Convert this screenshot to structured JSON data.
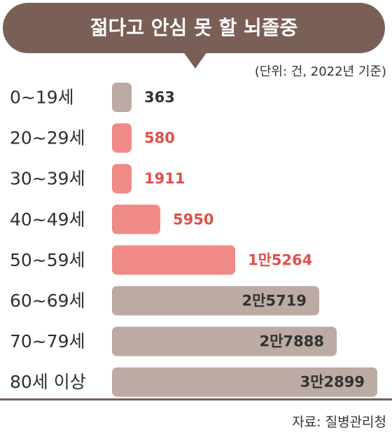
{
  "header": {
    "title": "젊다고 안심 못 할 뇌졸중",
    "unit_note": "(단위: 건, 2022년 기준)"
  },
  "source": "자료: 질병관리청",
  "colors": {
    "banner": "#7a5f57",
    "bar_gray": "#bcaaa4",
    "bar_red": "#f08a86",
    "label_red": "#e0504a",
    "label_dark": "#333333"
  },
  "chart_data": {
    "type": "bar",
    "orientation": "horizontal",
    "title": "젊다고 안심 못 할 뇌졸중",
    "unit": "건",
    "categories": [
      "0~19세",
      "20~29세",
      "30~39세",
      "40~49세",
      "50~59세",
      "60~69세",
      "70~79세",
      "80세 이상"
    ],
    "values": [
      363,
      580,
      1911,
      5950,
      15264,
      25719,
      27888,
      32899
    ],
    "value_labels": [
      "363",
      "580",
      "1911",
      "5950",
      "1만5264",
      "2만5719",
      "2만7888",
      "3만2899"
    ],
    "highlight": [
      false,
      true,
      true,
      true,
      true,
      false,
      false,
      false
    ],
    "label_inside": [
      false,
      false,
      false,
      false,
      false,
      true,
      true,
      true
    ]
  }
}
